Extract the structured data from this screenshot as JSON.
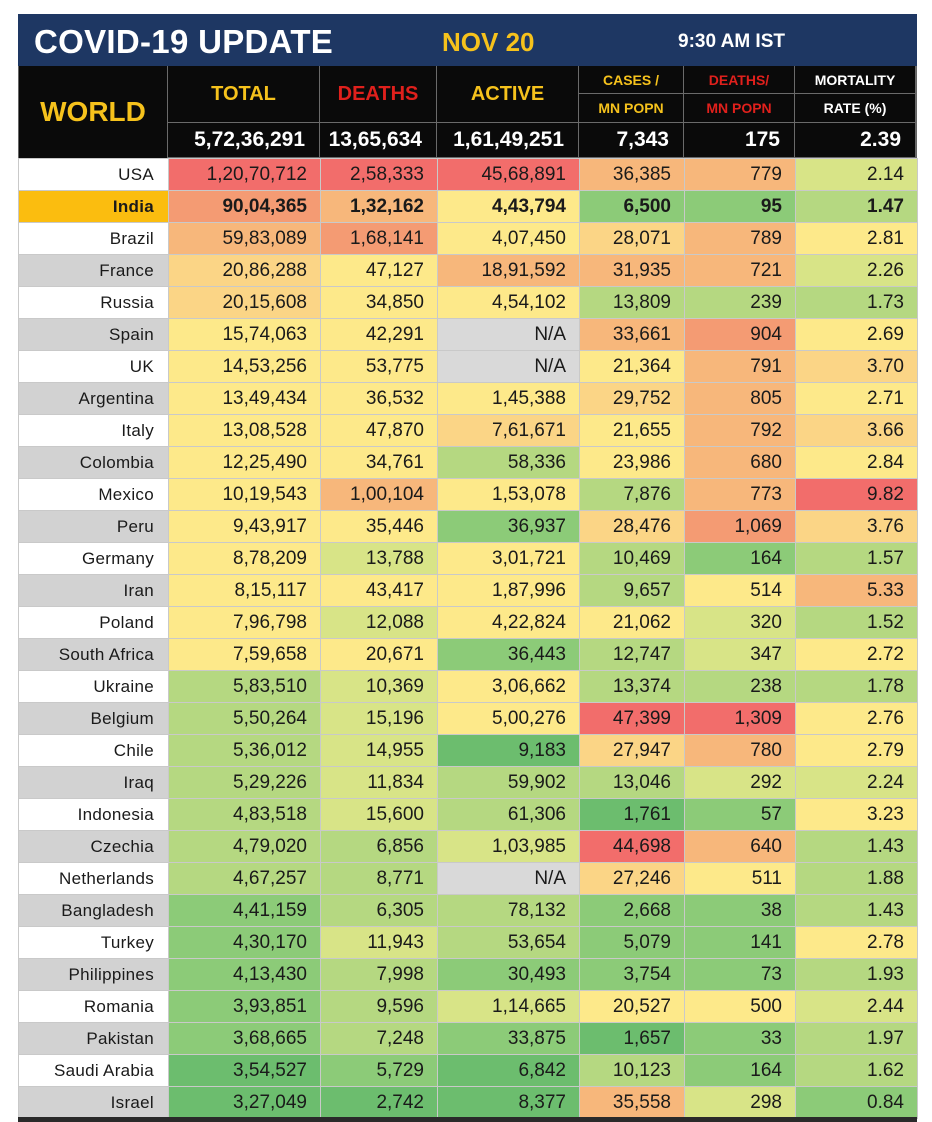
{
  "header": {
    "title": "COVID-19 UPDATE",
    "date": "NOV 20",
    "time": "9:30 AM IST"
  },
  "columns": {
    "region": "WORLD",
    "total": "TOTAL",
    "deaths": "DEATHS",
    "active": "ACTIVE",
    "cases_per_mn_l1": "CASES /",
    "cases_per_mn_l2": "MN POPN",
    "deaths_per_mn_l1": "DEATHS/",
    "deaths_per_mn_l2": "MN POPN",
    "mortality_l1": "MORTALITY",
    "mortality_l2": "RATE (%)"
  },
  "world_totals": {
    "total": "5,72,36,291",
    "deaths": "13,65,634",
    "active": "1,61,49,251",
    "cases_per_mn": "7,343",
    "deaths_per_mn": "175",
    "mortality": "2.39"
  },
  "colors": {
    "red": "#f26d6b",
    "orange_red": "#f49b73",
    "orange": "#f7b77b",
    "light_orange": "#fbd586",
    "yellow": "#fde98a",
    "yellow_green": "#d8e487",
    "light_green": "#b5d881",
    "green": "#8ccb78",
    "deep_green": "#6cbd6e",
    "na_gray": "#d9d9d9"
  },
  "rows": [
    {
      "country": "USA",
      "total": "1,20,70,712",
      "deaths": "2,58,333",
      "active": "45,68,891",
      "cases_per_mn": "36,385",
      "deaths_per_mn": "779",
      "mortality": "2.14",
      "c": [
        "red",
        "red",
        "red",
        "orange",
        "orange",
        "yellow_green"
      ]
    },
    {
      "country": "India",
      "total": "90,04,365",
      "deaths": "1,32,162",
      "active": "4,43,794",
      "cases_per_mn": "6,500",
      "deaths_per_mn": "95",
      "mortality": "1.47",
      "c": [
        "orange_red",
        "orange",
        "yellow",
        "green",
        "green",
        "light_green"
      ]
    },
    {
      "country": "Brazil",
      "total": "59,83,089",
      "deaths": "1,68,141",
      "active": "4,07,450",
      "cases_per_mn": "28,071",
      "deaths_per_mn": "789",
      "mortality": "2.81",
      "c": [
        "orange",
        "orange_red",
        "yellow",
        "light_orange",
        "orange",
        "yellow"
      ]
    },
    {
      "country": "France",
      "total": "20,86,288",
      "deaths": "47,127",
      "active": "18,91,592",
      "cases_per_mn": "31,935",
      "deaths_per_mn": "721",
      "mortality": "2.26",
      "c": [
        "light_orange",
        "yellow",
        "orange",
        "orange",
        "orange",
        "yellow_green"
      ]
    },
    {
      "country": "Russia",
      "total": "20,15,608",
      "deaths": "34,850",
      "active": "4,54,102",
      "cases_per_mn": "13,809",
      "deaths_per_mn": "239",
      "mortality": "1.73",
      "c": [
        "light_orange",
        "yellow",
        "yellow",
        "light_green",
        "light_green",
        "light_green"
      ]
    },
    {
      "country": "Spain",
      "total": "15,74,063",
      "deaths": "42,291",
      "active": "N/A",
      "cases_per_mn": "33,661",
      "deaths_per_mn": "904",
      "mortality": "2.69",
      "c": [
        "yellow",
        "yellow",
        "na_gray",
        "orange",
        "orange_red",
        "yellow"
      ]
    },
    {
      "country": "UK",
      "total": "14,53,256",
      "deaths": "53,775",
      "active": "N/A",
      "cases_per_mn": "21,364",
      "deaths_per_mn": "791",
      "mortality": "3.70",
      "c": [
        "yellow",
        "yellow",
        "na_gray",
        "yellow",
        "orange",
        "light_orange"
      ]
    },
    {
      "country": "Argentina",
      "total": "13,49,434",
      "deaths": "36,532",
      "active": "1,45,388",
      "cases_per_mn": "29,752",
      "deaths_per_mn": "805",
      "mortality": "2.71",
      "c": [
        "yellow",
        "yellow",
        "yellow",
        "light_orange",
        "orange",
        "yellow"
      ]
    },
    {
      "country": "Italy",
      "total": "13,08,528",
      "deaths": "47,870",
      "active": "7,61,671",
      "cases_per_mn": "21,655",
      "deaths_per_mn": "792",
      "mortality": "3.66",
      "c": [
        "yellow",
        "yellow",
        "light_orange",
        "yellow",
        "orange",
        "light_orange"
      ]
    },
    {
      "country": "Colombia",
      "total": "12,25,490",
      "deaths": "34,761",
      "active": "58,336",
      "cases_per_mn": "23,986",
      "deaths_per_mn": "680",
      "mortality": "2.84",
      "c": [
        "yellow",
        "yellow",
        "light_green",
        "yellow",
        "orange",
        "yellow"
      ]
    },
    {
      "country": "Mexico",
      "total": "10,19,543",
      "deaths": "1,00,104",
      "active": "1,53,078",
      "cases_per_mn": "7,876",
      "deaths_per_mn": "773",
      "mortality": "9.82",
      "c": [
        "yellow",
        "orange",
        "yellow",
        "light_green",
        "orange",
        "red"
      ]
    },
    {
      "country": "Peru",
      "total": "9,43,917",
      "deaths": "35,446",
      "active": "36,937",
      "cases_per_mn": "28,476",
      "deaths_per_mn": "1,069",
      "mortality": "3.76",
      "c": [
        "yellow",
        "yellow",
        "green",
        "light_orange",
        "orange_red",
        "light_orange"
      ]
    },
    {
      "country": "Germany",
      "total": "8,78,209",
      "deaths": "13,788",
      "active": "3,01,721",
      "cases_per_mn": "10,469",
      "deaths_per_mn": "164",
      "mortality": "1.57",
      "c": [
        "yellow",
        "yellow_green",
        "yellow",
        "light_green",
        "green",
        "light_green"
      ]
    },
    {
      "country": "Iran",
      "total": "8,15,117",
      "deaths": "43,417",
      "active": "1,87,996",
      "cases_per_mn": "9,657",
      "deaths_per_mn": "514",
      "mortality": "5.33",
      "c": [
        "yellow",
        "yellow",
        "yellow",
        "light_green",
        "yellow",
        "orange"
      ]
    },
    {
      "country": "Poland",
      "total": "7,96,798",
      "deaths": "12,088",
      "active": "4,22,824",
      "cases_per_mn": "21,062",
      "deaths_per_mn": "320",
      "mortality": "1.52",
      "c": [
        "yellow",
        "yellow_green",
        "yellow",
        "yellow",
        "yellow_green",
        "light_green"
      ]
    },
    {
      "country": "South Africa",
      "total": "7,59,658",
      "deaths": "20,671",
      "active": "36,443",
      "cases_per_mn": "12,747",
      "deaths_per_mn": "347",
      "mortality": "2.72",
      "c": [
        "yellow",
        "yellow",
        "green",
        "light_green",
        "yellow_green",
        "yellow"
      ]
    },
    {
      "country": "Ukraine",
      "total": "5,83,510",
      "deaths": "10,369",
      "active": "3,06,662",
      "cases_per_mn": "13,374",
      "deaths_per_mn": "238",
      "mortality": "1.78",
      "c": [
        "light_green",
        "yellow_green",
        "yellow",
        "light_green",
        "light_green",
        "light_green"
      ]
    },
    {
      "country": "Belgium",
      "total": "5,50,264",
      "deaths": "15,196",
      "active": "5,00,276",
      "cases_per_mn": "47,399",
      "deaths_per_mn": "1,309",
      "mortality": "2.76",
      "c": [
        "light_green",
        "yellow_green",
        "yellow",
        "red",
        "red",
        "yellow"
      ]
    },
    {
      "country": "Chile",
      "total": "5,36,012",
      "deaths": "14,955",
      "active": "9,183",
      "cases_per_mn": "27,947",
      "deaths_per_mn": "780",
      "mortality": "2.79",
      "c": [
        "light_green",
        "yellow_green",
        "deep_green",
        "light_orange",
        "orange",
        "yellow"
      ]
    },
    {
      "country": "Iraq",
      "total": "5,29,226",
      "deaths": "11,834",
      "active": "59,902",
      "cases_per_mn": "13,046",
      "deaths_per_mn": "292",
      "mortality": "2.24",
      "c": [
        "light_green",
        "yellow_green",
        "light_green",
        "light_green",
        "yellow_green",
        "yellow_green"
      ]
    },
    {
      "country": "Indonesia",
      "total": "4,83,518",
      "deaths": "15,600",
      "active": "61,306",
      "cases_per_mn": "1,761",
      "deaths_per_mn": "57",
      "mortality": "3.23",
      "c": [
        "light_green",
        "yellow_green",
        "light_green",
        "deep_green",
        "green",
        "yellow"
      ]
    },
    {
      "country": "Czechia",
      "total": "4,79,020",
      "deaths": "6,856",
      "active": "1,03,985",
      "cases_per_mn": "44,698",
      "deaths_per_mn": "640",
      "mortality": "1.43",
      "c": [
        "light_green",
        "light_green",
        "yellow_green",
        "red",
        "orange",
        "light_green"
      ]
    },
    {
      "country": "Netherlands",
      "total": "4,67,257",
      "deaths": "8,771",
      "active": "N/A",
      "cases_per_mn": "27,246",
      "deaths_per_mn": "511",
      "mortality": "1.88",
      "c": [
        "light_green",
        "light_green",
        "na_gray",
        "light_orange",
        "yellow",
        "light_green"
      ]
    },
    {
      "country": "Bangladesh",
      "total": "4,41,159",
      "deaths": "6,305",
      "active": "78,132",
      "cases_per_mn": "2,668",
      "deaths_per_mn": "38",
      "mortality": "1.43",
      "c": [
        "green",
        "light_green",
        "light_green",
        "green",
        "green",
        "light_green"
      ]
    },
    {
      "country": "Turkey",
      "total": "4,30,170",
      "deaths": "11,943",
      "active": "53,654",
      "cases_per_mn": "5,079",
      "deaths_per_mn": "141",
      "mortality": "2.78",
      "c": [
        "green",
        "yellow_green",
        "light_green",
        "green",
        "green",
        "yellow"
      ]
    },
    {
      "country": "Philippines",
      "total": "4,13,430",
      "deaths": "7,998",
      "active": "30,493",
      "cases_per_mn": "3,754",
      "deaths_per_mn": "73",
      "mortality": "1.93",
      "c": [
        "green",
        "light_green",
        "green",
        "green",
        "green",
        "light_green"
      ]
    },
    {
      "country": "Romania",
      "total": "3,93,851",
      "deaths": "9,596",
      "active": "1,14,665",
      "cases_per_mn": "20,527",
      "deaths_per_mn": "500",
      "mortality": "2.44",
      "c": [
        "green",
        "light_green",
        "yellow_green",
        "yellow",
        "yellow",
        "yellow_green"
      ]
    },
    {
      "country": "Pakistan",
      "total": "3,68,665",
      "deaths": "7,248",
      "active": "33,875",
      "cases_per_mn": "1,657",
      "deaths_per_mn": "33",
      "mortality": "1.97",
      "c": [
        "green",
        "light_green",
        "green",
        "deep_green",
        "green",
        "light_green"
      ]
    },
    {
      "country": "Saudi Arabia",
      "total": "3,54,527",
      "deaths": "5,729",
      "active": "6,842",
      "cases_per_mn": "10,123",
      "deaths_per_mn": "164",
      "mortality": "1.62",
      "c": [
        "deep_green",
        "green",
        "deep_green",
        "light_green",
        "green",
        "light_green"
      ]
    },
    {
      "country": "Israel",
      "total": "3,27,049",
      "deaths": "2,742",
      "active": "8,377",
      "cases_per_mn": "35,558",
      "deaths_per_mn": "298",
      "mortality": "0.84",
      "c": [
        "deep_green",
        "deep_green",
        "deep_green",
        "orange",
        "yellow_green",
        "green"
      ]
    }
  ]
}
